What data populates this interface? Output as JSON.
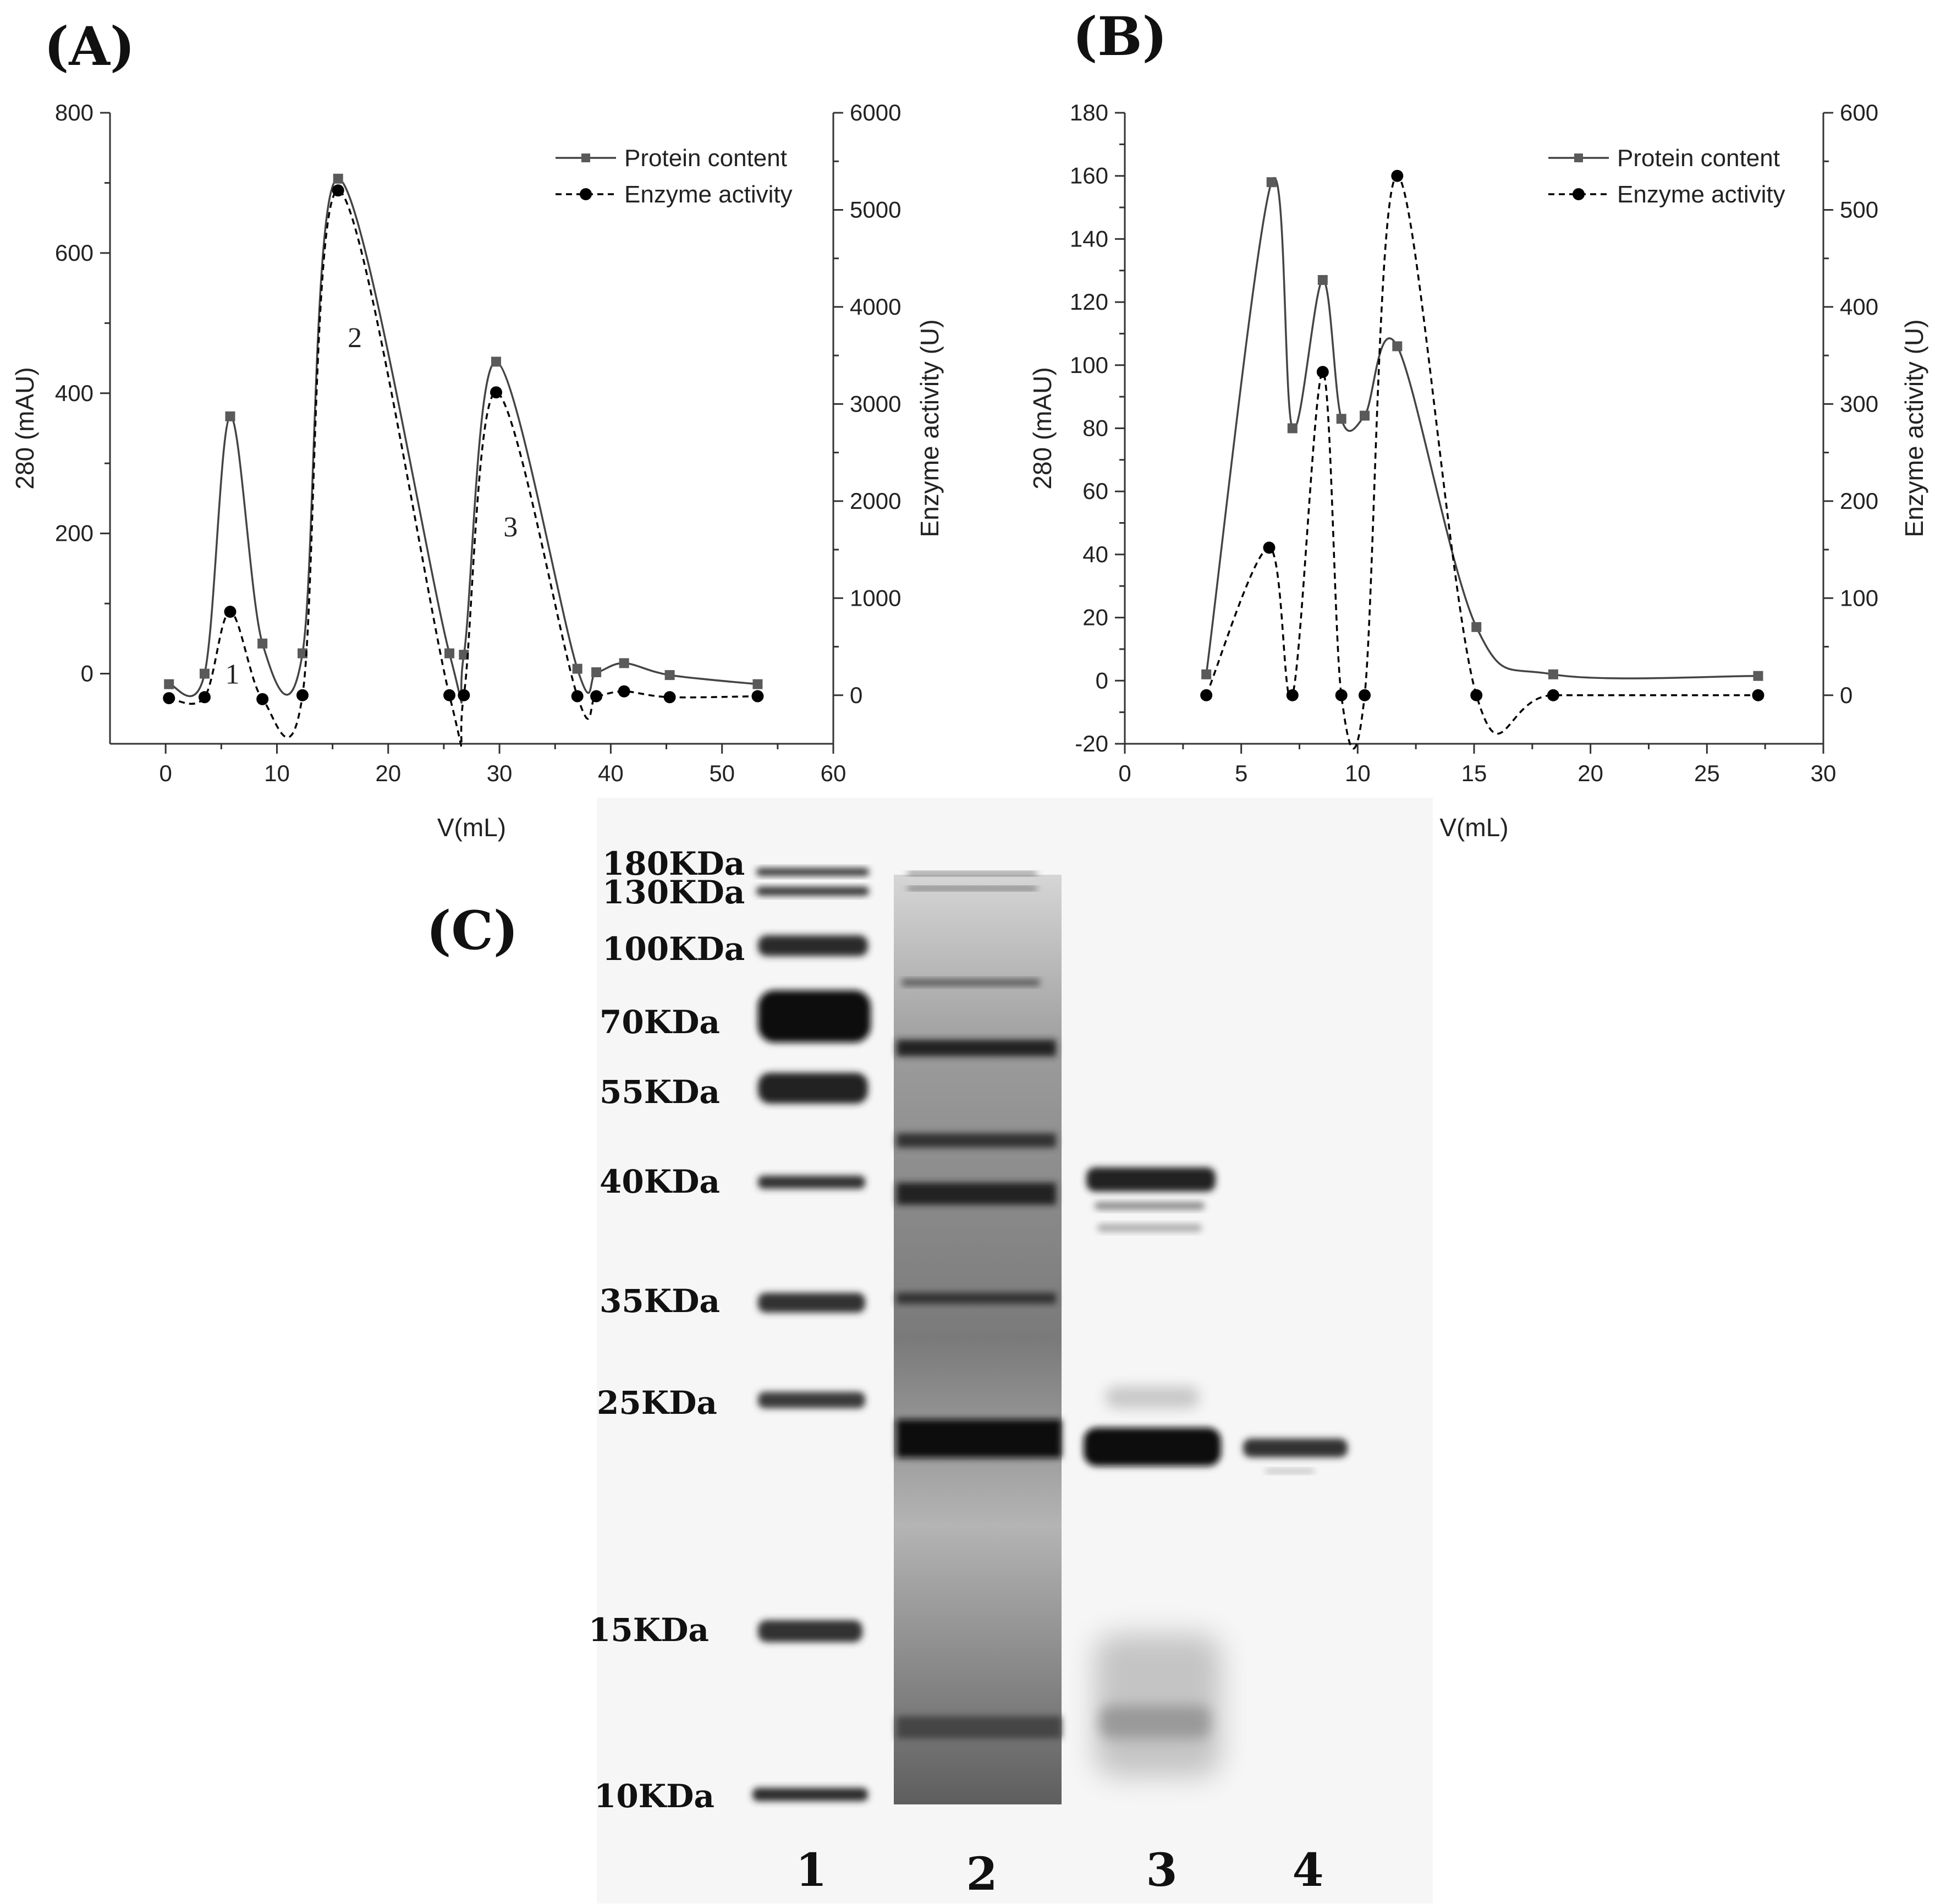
{
  "panels": {
    "a_label": "(A)",
    "b_label": "(B)",
    "c_label": "(C)"
  },
  "chart_data": [
    {
      "panel": "(A)",
      "type": "line",
      "xlabel": "V(mL)",
      "ylabel_left": "280 (mAU)",
      "ylabel_right": "Enzyme activity (U)",
      "xlim": [
        -5,
        60
      ],
      "ylim_left": [
        -100,
        800
      ],
      "ylim_right": [
        -500,
        6000
      ],
      "xticks": [
        0,
        10,
        20,
        30,
        40,
        50,
        60
      ],
      "yticks_left": [
        0,
        200,
        400,
        600,
        800
      ],
      "yticks_right": [
        0,
        1000,
        2000,
        3000,
        4000,
        5000,
        6000
      ],
      "legend": "top-right",
      "annotations": [
        {
          "text": "1",
          "x": 6,
          "y": 0
        },
        {
          "text": "2",
          "x": 17,
          "y": 480
        },
        {
          "text": "3",
          "x": 31,
          "y": 210
        }
      ],
      "series": [
        {
          "name": "Protein content",
          "axis": "left",
          "style": "solid-square",
          "x": [
            0.3,
            3.5,
            5.8,
            8.7,
            12.3,
            15.5,
            25.5,
            26.8,
            29.7,
            37.0,
            38.7,
            41.2,
            45.3,
            53.2
          ],
          "y": [
            -15,
            0,
            367,
            43,
            29,
            706,
            29,
            27,
            445,
            7,
            2,
            15,
            -2,
            -15
          ]
        },
        {
          "name": "Enzyme activity",
          "axis": "right",
          "style": "dashed-circle",
          "x": [
            0.3,
            3.5,
            5.8,
            8.7,
            12.3,
            15.5,
            25.5,
            26.8,
            29.7,
            37.0,
            38.7,
            41.2,
            45.3,
            53.2
          ],
          "y": [
            -30,
            -20,
            860,
            -40,
            0,
            5200,
            0,
            0,
            3120,
            -10,
            -10,
            40,
            -20,
            -10
          ]
        }
      ]
    },
    {
      "panel": "(B)",
      "type": "line",
      "xlabel": "V(mL)",
      "ylabel_left": "280 (mAU)",
      "ylabel_right": "Enzyme activity (U)",
      "xlim": [
        0,
        30
      ],
      "ylim_left": [
        -20,
        180
      ],
      "ylim_right": [
        -50,
        600
      ],
      "xticks": [
        0,
        5,
        10,
        15,
        20,
        25,
        30
      ],
      "yticks_left": [
        -20,
        0,
        20,
        40,
        60,
        80,
        100,
        120,
        140,
        160,
        180
      ],
      "yticks_right": [
        0,
        100,
        200,
        300,
        400,
        500,
        600
      ],
      "legend": "top-right",
      "series": [
        {
          "name": "Protein content",
          "axis": "left",
          "style": "solid-square",
          "x": [
            3.5,
            6.3,
            7.2,
            8.5,
            9.3,
            10.3,
            11.7,
            15.1,
            18.4,
            27.2
          ],
          "y": [
            2,
            158,
            80,
            127,
            83,
            84,
            106,
            17,
            2,
            1.5
          ]
        },
        {
          "name": "Enzyme activity",
          "axis": "right",
          "style": "dashed-circle",
          "x": [
            3.5,
            6.2,
            7.2,
            8.5,
            9.3,
            10.3,
            11.7,
            15.1,
            18.4,
            27.2
          ],
          "y": [
            0,
            152,
            0,
            333,
            0,
            0,
            535,
            0,
            0,
            0
          ]
        }
      ]
    }
  ],
  "gel": {
    "markers": [
      "180KDa",
      "130KDa",
      "100KDa",
      "70KDa",
      "55KDa",
      "40KDa",
      "35KDa",
      "25KDa",
      "15KDa",
      "10KDa"
    ],
    "lanes": [
      "1",
      "2",
      "3",
      "4"
    ]
  }
}
